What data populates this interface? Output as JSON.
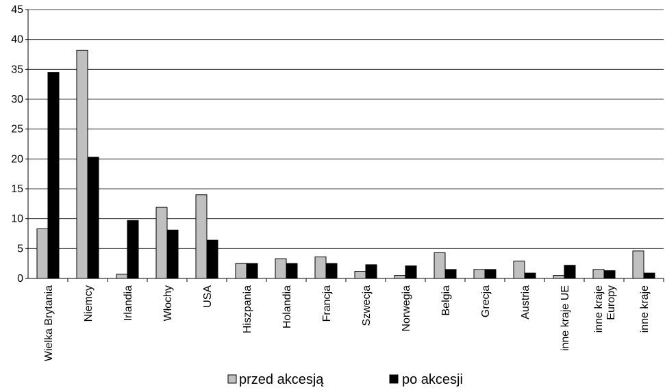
{
  "chart_data": {
    "type": "bar",
    "categories": [
      "Wielka Brytania",
      "Niemcy",
      "Irlandia",
      "Włochy",
      "USA",
      "Hiszpania",
      "Holandia",
      "Francja",
      "Szwecja",
      "Norwegia",
      "Belgia",
      "Grecja",
      "Austria",
      "inne kraje UE",
      "inne kraje Europy",
      "inne kraje"
    ],
    "series": [
      {
        "name": "przed akcesją",
        "color": "#c0c0c0",
        "values": [
          8.3,
          38.2,
          0.7,
          11.9,
          14.0,
          2.5,
          3.3,
          3.6,
          1.2,
          0.5,
          4.3,
          1.5,
          2.9,
          0.5,
          1.5,
          4.6
        ]
      },
      {
        "name": "po akcesji",
        "color": "#000000",
        "values": [
          34.5,
          20.3,
          9.7,
          8.1,
          6.4,
          2.5,
          2.5,
          2.5,
          2.3,
          2.1,
          1.5,
          1.5,
          0.9,
          2.2,
          1.3,
          0.9
        ]
      }
    ],
    "yticks": [
      "0",
      "5",
      "10",
      "15",
      "20",
      "25",
      "30",
      "35",
      "40",
      "45"
    ],
    "ylim": [
      0,
      45
    ],
    "grid": true,
    "legend_position": "bottom",
    "title": "",
    "xlabel": "",
    "ylabel": ""
  }
}
